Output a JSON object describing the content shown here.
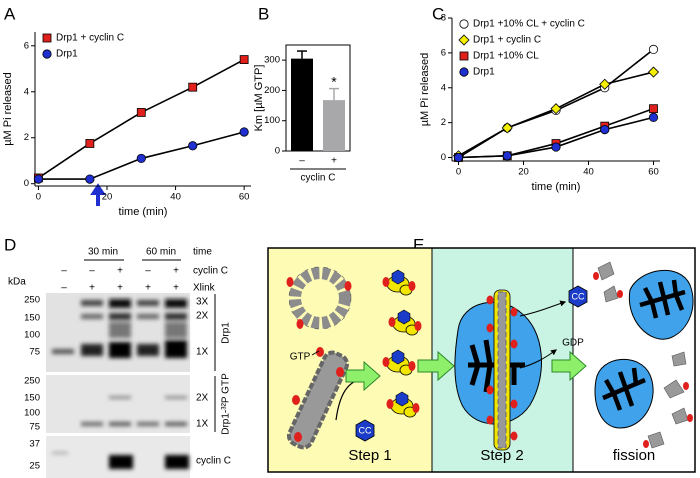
{
  "chart_data": [
    {
      "panel_label": "A",
      "type": "line",
      "xlabel": "time (min)",
      "ylabel": "µM Pi released",
      "x": [
        0,
        15,
        30,
        45,
        60
      ],
      "xlim": [
        -1,
        62
      ],
      "xticks": [
        0,
        20,
        40,
        60
      ],
      "ylim": [
        -0.1,
        6.6
      ],
      "yticks": [
        0,
        2,
        4,
        6
      ],
      "series": [
        {
          "name": "Drp1 + cyclin C",
          "color": "#e0201c",
          "marker": "square",
          "values": [
            0.25,
            1.75,
            3.1,
            4.2,
            5.4
          ]
        },
        {
          "name": "Drp1",
          "color": "#1f2fd0",
          "marker": "circle",
          "values": [
            0.2,
            0.2,
            1.1,
            1.65,
            2.25
          ]
        }
      ]
    },
    {
      "panel_label": "B",
      "type": "bar",
      "xlabel": "cyclin C",
      "ylabel": "Km [µM GTP]",
      "categories": [
        "–",
        "+"
      ],
      "values": [
        305,
        168
      ],
      "errors": [
        25,
        38
      ],
      "colors": [
        "#000000",
        "#a8a8ab"
      ],
      "ylim": [
        0,
        350
      ],
      "yticks": [
        0,
        100,
        200,
        300
      ],
      "annotation": "*"
    },
    {
      "panel_label": "C",
      "type": "line",
      "xlabel": "time (min)",
      "ylabel": "µM Pi released",
      "x": [
        0,
        15,
        30,
        45,
        60
      ],
      "xlim": [
        -2,
        62
      ],
      "xticks": [
        0,
        20,
        40,
        60
      ],
      "ylim": [
        -0.2,
        8
      ],
      "yticks": [
        0,
        2,
        4,
        6,
        8
      ],
      "series": [
        {
          "name": "Drp1 +10% CL + cyclin C",
          "color": "#ffffff",
          "marker": "circle",
          "values": [
            0,
            1.7,
            2.7,
            4.0,
            6.2
          ]
        },
        {
          "name": "Drp1 + cyclin C",
          "color": "#f4ee00",
          "marker": "diamond",
          "values": [
            0.1,
            1.7,
            2.8,
            4.2,
            4.9
          ]
        },
        {
          "name": "Drp1 +10% CL",
          "color": "#e0201c",
          "marker": "square",
          "values": [
            0,
            0.1,
            0.8,
            1.8,
            2.8
          ]
        },
        {
          "name": "Drp1",
          "color": "#1f2fd0",
          "marker": "circle",
          "values": [
            0,
            0.1,
            0.6,
            1.6,
            2.3
          ]
        }
      ]
    }
  ],
  "blot": {
    "panel_label": "D",
    "time_label": "time",
    "time_groups": [
      "30 min",
      "60 min"
    ],
    "rows": [
      {
        "label": "cyclin C",
        "signs": [
          "–",
          "–",
          "+",
          "–",
          "+"
        ]
      },
      {
        "label": "Xlink",
        "signs": [
          "–",
          "+",
          "+",
          "+",
          "+"
        ]
      }
    ],
    "marker_unit": "kDa",
    "panels": [
      {
        "name": "Drp1",
        "markers": [
          250,
          150,
          100,
          75
        ],
        "bands": [
          "3X",
          "2X",
          "1X"
        ]
      },
      {
        "name": "Drp1-³²P GTP",
        "markers": [
          250,
          150,
          100,
          75
        ],
        "bands": [
          "2X",
          "1X"
        ]
      },
      {
        "name": "cyclin C",
        "markers": [
          37,
          25
        ]
      }
    ]
  },
  "diagram": {
    "panel_label": "E",
    "gtp": "GTP",
    "cc_bound": "CC",
    "cc_released": "CC",
    "gdp": "GDP",
    "steps": [
      "Step 1",
      "Step 2",
      "fission"
    ]
  }
}
